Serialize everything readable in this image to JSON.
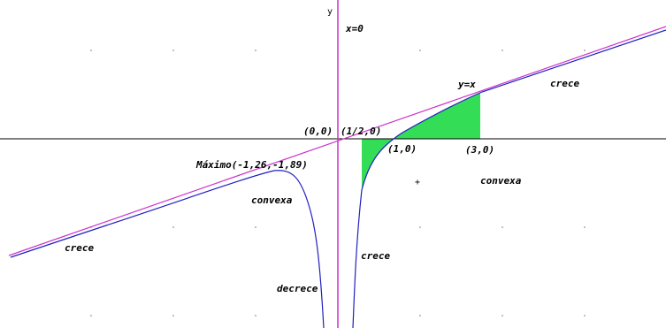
{
  "chart_data": {
    "type": "line",
    "xlabel": "",
    "ylabel": "y",
    "xlim": [
      -3.9,
      3.8
    ],
    "ylim": [
      -2.2,
      1.6
    ],
    "grid": "dots",
    "colors": {
      "curve": "#2020c0",
      "asymptote": "#cc33cc",
      "vertical_asymptote": "#cc33cc",
      "fill": "#33dd55",
      "axis": "#000000"
    },
    "series": [
      {
        "kind": "function",
        "note": "curve with vertical asymptote x=0 and oblique asymptote y=x"
      },
      {
        "kind": "asymptote",
        "name": "y=x",
        "values": [
          [
            -3.9,
            -3.9
          ],
          [
            3.8,
            3.8
          ]
        ]
      },
      {
        "kind": "asymptote",
        "name": "x=0",
        "values": [
          [
            0,
            -2.2
          ],
          [
            0,
            1.6
          ]
        ]
      }
    ],
    "filled_region": {
      "x_from": 0.25,
      "x_to": 1.6,
      "note": "green shaded area between curve and x-axis"
    },
    "labels": {
      "y_axis": "y",
      "x_eq_0": "x=0",
      "y_eq_x": "y=x",
      "crece_right": "crece",
      "origin": "(0,0)",
      "half": "(1/2,0)",
      "one": "(1,0)",
      "three": "(3,0)",
      "maximo": "Máximo(-1,26,-1,89)",
      "convexa_left": "convexa",
      "convexa_right": "convexa",
      "crece_left": "crece",
      "crece_mid": "crece",
      "decrece": "decrece",
      "plus": "+"
    }
  }
}
